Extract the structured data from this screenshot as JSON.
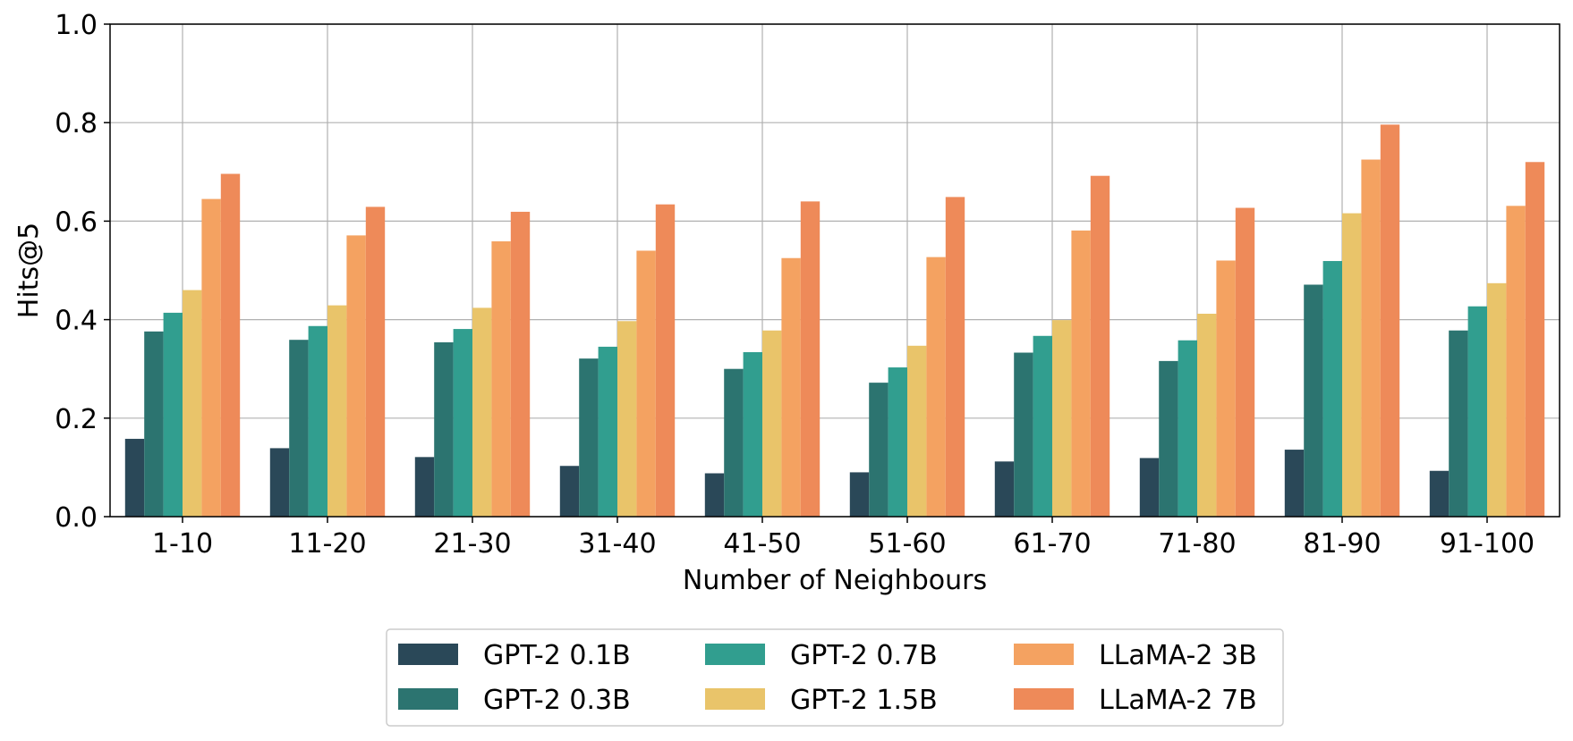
{
  "chart_data": {
    "type": "bar",
    "title": "",
    "xlabel": "Number of Neighbours",
    "ylabel": "Hits@5",
    "ylim": [
      0,
      1.0
    ],
    "yticks": [
      "0.0",
      "0.2",
      "0.4",
      "0.6",
      "0.8",
      "1.0"
    ],
    "grid": true,
    "legend_position": "bottom-center",
    "categories": [
      "1-10",
      "11-20",
      "21-30",
      "31-40",
      "41-50",
      "51-60",
      "61-70",
      "71-80",
      "81-90",
      "91-100"
    ],
    "series": [
      {
        "name": "GPT-2 0.1B",
        "color": "#2a4858",
        "values": [
          0.158,
          0.139,
          0.121,
          0.103,
          0.088,
          0.09,
          0.112,
          0.119,
          0.136,
          0.093
        ]
      },
      {
        "name": "GPT-2 0.3B",
        "color": "#2c7470",
        "values": [
          0.376,
          0.359,
          0.354,
          0.321,
          0.3,
          0.272,
          0.333,
          0.316,
          0.471,
          0.378
        ]
      },
      {
        "name": "GPT-2 0.7B",
        "color": "#319e8f",
        "values": [
          0.414,
          0.387,
          0.381,
          0.345,
          0.334,
          0.303,
          0.367,
          0.358,
          0.519,
          0.427
        ]
      },
      {
        "name": "GPT-2 1.5B",
        "color": "#e9c46a",
        "values": [
          0.46,
          0.429,
          0.424,
          0.397,
          0.378,
          0.347,
          0.399,
          0.412,
          0.616,
          0.474
        ]
      },
      {
        "name": "LLaMA-2 3B",
        "color": "#f4a261",
        "values": [
          0.645,
          0.571,
          0.559,
          0.54,
          0.525,
          0.527,
          0.581,
          0.52,
          0.725,
          0.631
        ]
      },
      {
        "name": "LLaMA-2 7B",
        "color": "#ee8a59",
        "values": [
          0.696,
          0.629,
          0.619,
          0.634,
          0.64,
          0.649,
          0.692,
          0.627,
          0.796,
          0.72
        ]
      }
    ]
  }
}
